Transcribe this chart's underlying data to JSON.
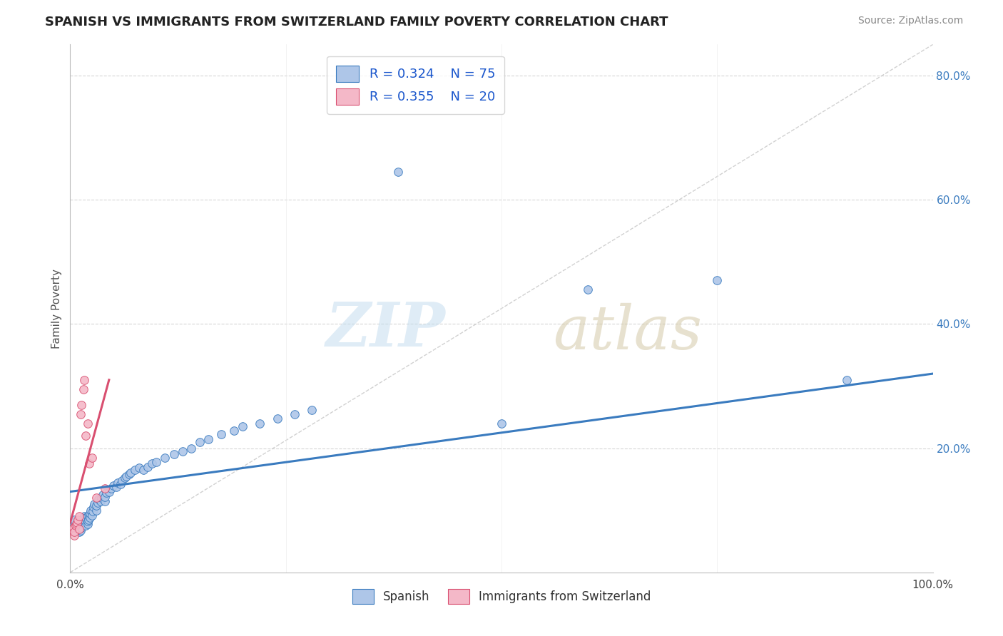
{
  "title": "SPANISH VS IMMIGRANTS FROM SWITZERLAND FAMILY POVERTY CORRELATION CHART",
  "source": "Source: ZipAtlas.com",
  "ylabel": "Family Poverty",
  "xlim": [
    0,
    1.0
  ],
  "ylim": [
    0,
    0.85
  ],
  "legend_r1": "R = 0.324",
  "legend_n1": "N = 75",
  "legend_r2": "R = 0.355",
  "legend_n2": "N = 20",
  "series1_color": "#aec6e8",
  "series2_color": "#f4b8c8",
  "trend1_color": "#3a7bbf",
  "trend2_color": "#d94f70",
  "spanish_x": [
    0.005,
    0.005,
    0.007,
    0.008,
    0.01,
    0.01,
    0.01,
    0.011,
    0.012,
    0.012,
    0.013,
    0.015,
    0.015,
    0.016,
    0.016,
    0.017,
    0.018,
    0.018,
    0.02,
    0.02,
    0.02,
    0.021,
    0.022,
    0.023,
    0.023,
    0.024,
    0.025,
    0.026,
    0.027,
    0.028,
    0.03,
    0.03,
    0.032,
    0.033,
    0.035,
    0.036,
    0.038,
    0.04,
    0.04,
    0.042,
    0.045,
    0.048,
    0.05,
    0.053,
    0.055,
    0.058,
    0.06,
    0.063,
    0.065,
    0.068,
    0.07,
    0.075,
    0.08,
    0.085,
    0.09,
    0.095,
    0.1,
    0.11,
    0.12,
    0.13,
    0.14,
    0.15,
    0.16,
    0.175,
    0.19,
    0.2,
    0.22,
    0.24,
    0.26,
    0.28,
    0.38,
    0.5,
    0.6,
    0.75,
    0.9
  ],
  "spanish_y": [
    0.075,
    0.085,
    0.07,
    0.08,
    0.065,
    0.072,
    0.078,
    0.082,
    0.068,
    0.075,
    0.072,
    0.08,
    0.085,
    0.078,
    0.09,
    0.083,
    0.075,
    0.088,
    0.078,
    0.082,
    0.09,
    0.085,
    0.092,
    0.088,
    0.095,
    0.1,
    0.092,
    0.098,
    0.105,
    0.11,
    0.1,
    0.108,
    0.112,
    0.118,
    0.115,
    0.12,
    0.125,
    0.115,
    0.122,
    0.128,
    0.13,
    0.135,
    0.14,
    0.138,
    0.145,
    0.142,
    0.148,
    0.152,
    0.155,
    0.158,
    0.16,
    0.165,
    0.168,
    0.165,
    0.17,
    0.175,
    0.178,
    0.185,
    0.19,
    0.195,
    0.2,
    0.21,
    0.215,
    0.222,
    0.228,
    0.235,
    0.24,
    0.248,
    0.255,
    0.262,
    0.645,
    0.24,
    0.455,
    0.47,
    0.31
  ],
  "swiss_x": [
    0.003,
    0.004,
    0.005,
    0.005,
    0.006,
    0.007,
    0.008,
    0.009,
    0.01,
    0.01,
    0.012,
    0.013,
    0.015,
    0.016,
    0.018,
    0.02,
    0.022,
    0.025,
    0.03,
    0.04
  ],
  "swiss_y": [
    0.068,
    0.072,
    0.06,
    0.065,
    0.075,
    0.078,
    0.08,
    0.085,
    0.07,
    0.09,
    0.255,
    0.27,
    0.295,
    0.31,
    0.22,
    0.24,
    0.175,
    0.185,
    0.12,
    0.135
  ],
  "trend1_x0": 0.0,
  "trend1_y0": 0.13,
  "trend1_x1": 1.0,
  "trend1_y1": 0.32,
  "trend2_x0": 0.0,
  "trend2_y0": 0.08,
  "trend2_x1": 0.045,
  "trend2_y1": 0.31
}
